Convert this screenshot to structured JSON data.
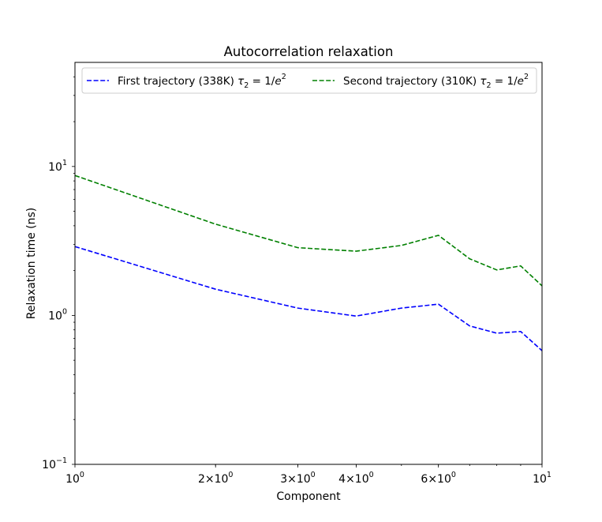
{
  "chart_data": {
    "type": "line",
    "title": "Autocorrelation relaxation",
    "xlabel": "Component",
    "ylabel": "Relaxation time (ns)",
    "xscale": "log",
    "yscale": "log",
    "xlim": [
      1,
      10
    ],
    "ylim": [
      0.1,
      50
    ],
    "grid": false,
    "legend": "top",
    "x": [
      1,
      2,
      3,
      4,
      5,
      6,
      7,
      8,
      9,
      10
    ],
    "series": [
      {
        "name": "First trajectory (338K) τ2 = 1/e2",
        "label_main": "First trajectory (338K) ",
        "label_tau": "τ",
        "label_sub": "2",
        "label_eq": " = 1/",
        "label_e": "e",
        "label_sup": "2",
        "color": "#0000ff",
        "linestyle": "dashed",
        "values": [
          2.9,
          1.5,
          1.12,
          0.99,
          1.12,
          1.19,
          0.85,
          0.76,
          0.78,
          0.58
        ]
      },
      {
        "name": "Second trajectory (310K) τ2 = 1/e2",
        "label_main": "Second trajectory (310K) ",
        "label_tau": "τ",
        "label_sub": "2",
        "label_eq": " = 1/",
        "label_e": "e",
        "label_sup": "2",
        "color": "#008000",
        "linestyle": "dashed",
        "values": [
          8.7,
          4.1,
          2.85,
          2.7,
          2.95,
          3.45,
          2.4,
          2.02,
          2.15,
          1.58
        ]
      }
    ],
    "xticks": [
      {
        "value": 1,
        "base": "10",
        "exp": "0"
      },
      {
        "value": 2,
        "base": "2×10",
        "exp": "0"
      },
      {
        "value": 3,
        "base": "3×10",
        "exp": "0"
      },
      {
        "value": 4,
        "base": "4×10",
        "exp": "0"
      },
      {
        "value": 6,
        "base": "6×10",
        "exp": "0"
      },
      {
        "value": 10,
        "base": "10",
        "exp": "1"
      }
    ],
    "yticks": [
      {
        "value": 0.1,
        "base": "10",
        "exp": "−1"
      },
      {
        "value": 1,
        "base": "10",
        "exp": "0"
      },
      {
        "value": 10,
        "base": "10",
        "exp": "1"
      }
    ]
  }
}
